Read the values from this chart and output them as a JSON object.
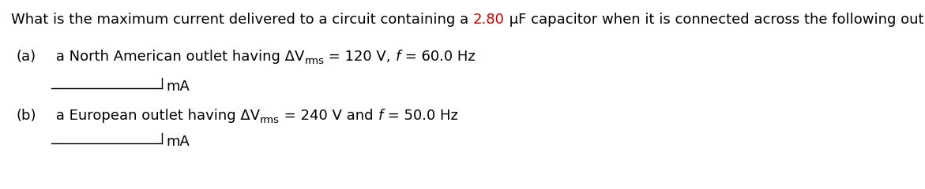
{
  "background_color": "#ffffff",
  "title_normal1": "What is the maximum current delivered to a circuit containing a ",
  "title_red": "2.80",
  "title_normal2": " μF capacitor when it is connected across the following outlets?",
  "part_a_label": "(a)",
  "part_a_main": " a North American outlet having ΔV",
  "part_a_sub": "rms",
  "part_a_rest1": " = 120 V, ",
  "part_a_italic": "f",
  "part_a_rest2": " = 60.0 Hz",
  "part_b_label": "(b)",
  "part_b_main": " a European outlet having ΔV",
  "part_b_sub": "rms",
  "part_b_rest1": " = 240 V and ",
  "part_b_italic": "f",
  "part_b_rest2": " = 50.0 Hz",
  "unit": "mA",
  "font_size": 13.0,
  "sub_font_size": 9.5,
  "red_color": "#cc0000",
  "black_color": "#000000"
}
